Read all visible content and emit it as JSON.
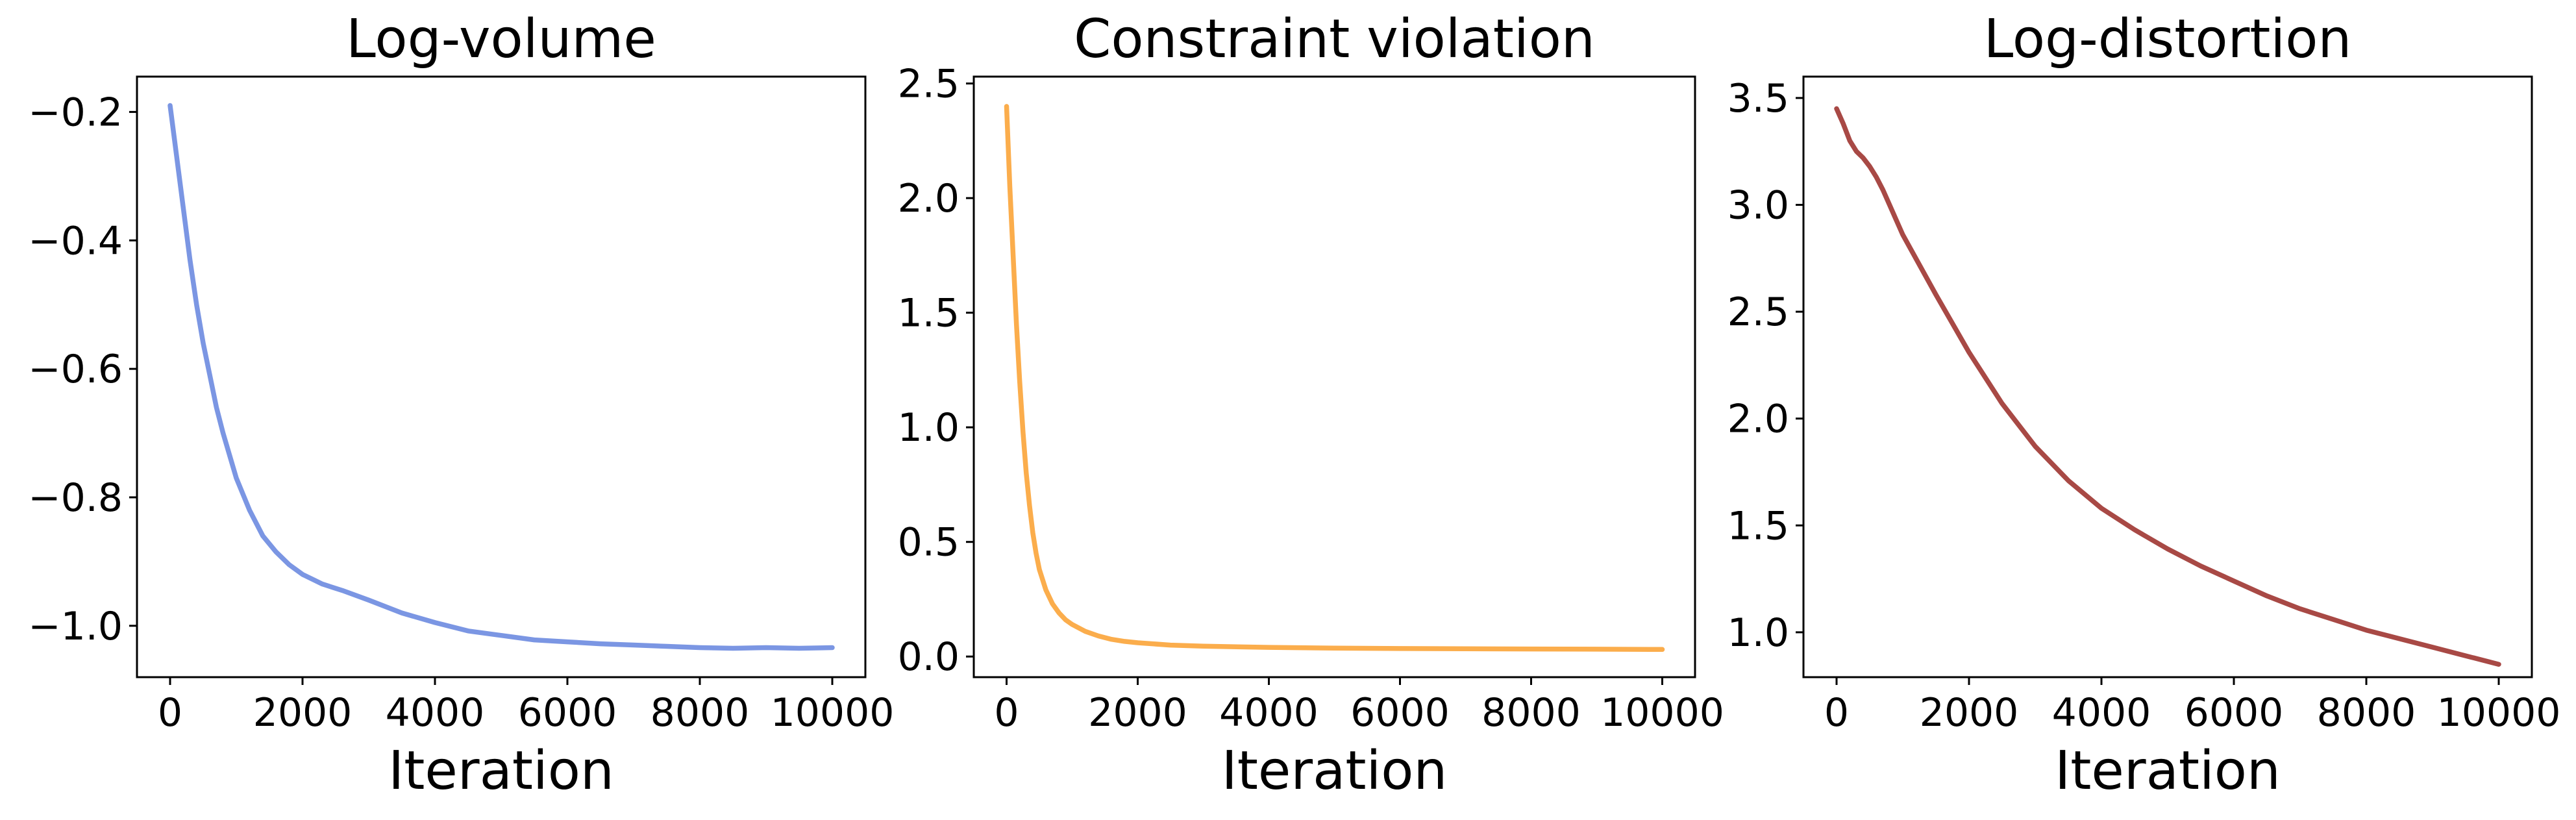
{
  "chart_data": [
    {
      "type": "line",
      "title": "Log-volume",
      "xlabel": "Iteration",
      "ylabel": "",
      "xlim": [
        -500,
        10500
      ],
      "ylim": [
        -1.08,
        -0.145
      ],
      "xticks": [
        0,
        2000,
        4000,
        6000,
        8000,
        10000
      ],
      "xtick_labels": [
        "0",
        "2000",
        "4000",
        "6000",
        "8000",
        "10000"
      ],
      "yticks": [
        -0.2,
        -0.4,
        -0.6,
        -0.8,
        -1.0
      ],
      "ytick_labels": [
        "−0.2",
        "−0.4",
        "−0.6",
        "−0.8",
        "−1.0"
      ],
      "grid": false,
      "color": "#7b96e3",
      "series": [
        {
          "x": [
            0,
            100,
            200,
            300,
            400,
            500,
            600,
            700,
            800,
            900,
            1000,
            1200,
            1400,
            1600,
            1800,
            2000,
            2300,
            2600,
            3000,
            3500,
            4000,
            4500,
            5000,
            5500,
            6000,
            6500,
            7000,
            7500,
            8000,
            8500,
            9000,
            9500,
            10000
          ],
          "y": [
            -0.19,
            -0.27,
            -0.35,
            -0.43,
            -0.5,
            -0.56,
            -0.61,
            -0.66,
            -0.7,
            -0.735,
            -0.77,
            -0.82,
            -0.86,
            -0.885,
            -0.905,
            -0.92,
            -0.935,
            -0.945,
            -0.96,
            -0.98,
            -0.995,
            -1.008,
            -1.015,
            -1.022,
            -1.025,
            -1.028,
            -1.03,
            -1.032,
            -1.034,
            -1.035,
            -1.034,
            -1.035,
            -1.034
          ]
        }
      ]
    },
    {
      "type": "line",
      "title": "Constraint violation",
      "xlabel": "Iteration",
      "ylabel": "",
      "xlim": [
        -500,
        10500
      ],
      "ylim": [
        -0.09,
        2.53
      ],
      "xticks": [
        0,
        2000,
        4000,
        6000,
        8000,
        10000
      ],
      "xtick_labels": [
        "0",
        "2000",
        "4000",
        "6000",
        "8000",
        "10000"
      ],
      "yticks": [
        0.0,
        0.5,
        1.0,
        1.5,
        2.0,
        2.5
      ],
      "ytick_labels": [
        "0.0",
        "0.5",
        "1.0",
        "1.5",
        "2.0",
        "2.5"
      ],
      "grid": false,
      "color": "#fbad4c",
      "series": [
        {
          "x": [
            0,
            50,
            100,
            150,
            200,
            250,
            300,
            350,
            400,
            450,
            500,
            600,
            700,
            800,
            900,
            1000,
            1200,
            1400,
            1600,
            1800,
            2000,
            2500,
            3000,
            4000,
            5000,
            6000,
            7000,
            8000,
            9000,
            10000
          ],
          "y": [
            2.4,
            2.05,
            1.75,
            1.45,
            1.2,
            0.98,
            0.8,
            0.66,
            0.54,
            0.45,
            0.38,
            0.29,
            0.23,
            0.19,
            0.16,
            0.14,
            0.11,
            0.09,
            0.075,
            0.066,
            0.06,
            0.05,
            0.045,
            0.04,
            0.037,
            0.035,
            0.034,
            0.033,
            0.032,
            0.031
          ]
        }
      ]
    },
    {
      "type": "line",
      "title": "Log-distortion",
      "xlabel": "Iteration",
      "ylabel": "",
      "xlim": [
        -500,
        10500
      ],
      "ylim": [
        0.79,
        3.6
      ],
      "xticks": [
        0,
        2000,
        4000,
        6000,
        8000,
        10000
      ],
      "xtick_labels": [
        "0",
        "2000",
        "4000",
        "6000",
        "8000",
        "10000"
      ],
      "yticks": [
        1.0,
        1.5,
        2.0,
        2.5,
        3.0,
        3.5
      ],
      "ytick_labels": [
        "1.0",
        "1.5",
        "2.0",
        "2.5",
        "3.0",
        "3.5"
      ],
      "grid": false,
      "color": "#a84945",
      "series": [
        {
          "x": [
            0,
            100,
            200,
            300,
            400,
            500,
            600,
            700,
            800,
            900,
            1000,
            1500,
            2000,
            2500,
            3000,
            3500,
            4000,
            4500,
            5000,
            5500,
            6000,
            6500,
            7000,
            7500,
            8000,
            8500,
            9000,
            9500,
            10000
          ],
          "y": [
            3.45,
            3.38,
            3.3,
            3.25,
            3.22,
            3.18,
            3.13,
            3.07,
            3.0,
            2.93,
            2.86,
            2.58,
            2.31,
            2.07,
            1.87,
            1.71,
            1.58,
            1.48,
            1.39,
            1.31,
            1.24,
            1.17,
            1.11,
            1.06,
            1.01,
            0.97,
            0.93,
            0.89,
            0.85
          ]
        }
      ]
    }
  ]
}
